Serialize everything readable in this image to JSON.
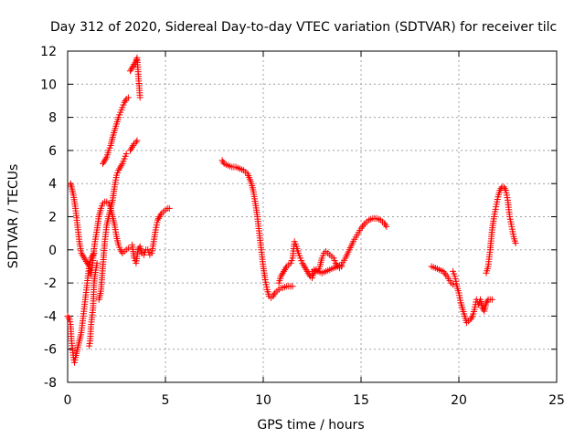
{
  "chart_data": {
    "type": "scatter",
    "title": "Day 312 of 2020, Sidereal Day-to-day VTEC variation (SDTVAR) for receiver tilc",
    "xlabel": "GPS time / hours",
    "ylabel": "SDTVAR / TECUs",
    "xlim": [
      0,
      25
    ],
    "ylim": [
      -8,
      12
    ],
    "xticks": [
      0,
      5,
      10,
      15,
      20,
      25
    ],
    "yticks": [
      -8,
      -6,
      -4,
      -2,
      0,
      2,
      4,
      6,
      8,
      10,
      12
    ],
    "grid": true,
    "legend": "none",
    "marker": "plus",
    "color": "#ff0000",
    "series": [
      {
        "x": [
          0.0,
          0.1,
          0.15,
          0.2,
          0.3,
          0.35,
          0.4,
          0.5,
          0.6,
          0.7,
          0.8,
          0.9,
          1.0,
          1.1,
          1.2,
          1.3,
          1.35
        ],
        "y": [
          -4.0,
          -4.2,
          -4.5,
          -5.5,
          -6.5,
          -6.8,
          -6.5,
          -6.0,
          -5.5,
          -5.0,
          -4.0,
          -3.0,
          -2.0,
          -1.0,
          -0.5,
          -0.3,
          -0.2
        ]
      },
      {
        "x": [
          0.15,
          0.2,
          0.3,
          0.4,
          0.5,
          0.6,
          0.7,
          0.8,
          0.9,
          1.0,
          1.1,
          1.2,
          1.3,
          1.4,
          1.5,
          1.6,
          1.7,
          1.8,
          1.9,
          2.0,
          2.1,
          2.2,
          2.3,
          2.4,
          2.5,
          2.6,
          2.7,
          2.8,
          2.9,
          3.0,
          3.1
        ],
        "y": [
          4.0,
          3.8,
          3.3,
          2.5,
          1.5,
          0.5,
          -0.2,
          -0.4,
          -0.6,
          -0.8,
          -1.0,
          -1.5,
          -0.5,
          0.5,
          1.2,
          2.0,
          2.5,
          2.8,
          2.9,
          2.9,
          2.8,
          2.5,
          2.0,
          1.5,
          0.8,
          0.3,
          0.0,
          -0.2,
          -0.1,
          0.0,
          0.1
        ]
      },
      {
        "x": [
          1.1,
          1.15,
          1.2,
          1.3,
          1.35,
          1.4,
          1.5
        ],
        "y": [
          -5.8,
          -5.5,
          -4.5,
          -3.5,
          -2.0,
          -1.5,
          -0.8
        ]
      },
      {
        "x": [
          1.6,
          1.7,
          1.8,
          1.9,
          2.0,
          2.1,
          2.2,
          2.3,
          2.4,
          2.5,
          2.6,
          2.7,
          2.8,
          2.9,
          3.0
        ],
        "y": [
          -3.0,
          -2.5,
          -1.0,
          0.5,
          1.5,
          2.0,
          2.5,
          3.0,
          3.8,
          4.5,
          4.8,
          5.0,
          5.2,
          5.5,
          5.8
        ]
      },
      {
        "x": [
          1.8,
          1.9,
          2.0,
          2.1,
          2.2,
          2.3,
          2.4,
          2.5,
          2.6,
          2.7,
          2.8,
          2.9,
          3.0,
          3.1
        ],
        "y": [
          5.2,
          5.4,
          5.6,
          6.0,
          6.3,
          6.8,
          7.2,
          7.6,
          8.0,
          8.3,
          8.6,
          8.9,
          9.1,
          9.2
        ]
      },
      {
        "x": [
          3.2,
          3.3,
          3.4,
          3.5,
          3.55
        ],
        "y": [
          6.0,
          6.2,
          6.4,
          6.5,
          6.6
        ]
      },
      {
        "x": [
          3.2,
          3.3,
          3.4,
          3.5,
          3.55,
          3.7
        ],
        "y": [
          10.8,
          11.0,
          11.2,
          11.4,
          11.6,
          9.2
        ]
      },
      {
        "x": [
          3.3,
          3.4,
          3.5,
          3.6,
          3.7,
          3.8,
          3.9,
          4.0,
          4.1,
          4.2,
          4.3,
          4.4,
          4.5,
          4.6,
          4.7,
          4.8,
          4.9,
          5.0,
          5.1,
          5.2
        ],
        "y": [
          0.3,
          -0.5,
          -0.8,
          0.0,
          0.2,
          -0.2,
          -0.3,
          0.0,
          0.0,
          -0.3,
          -0.2,
          0.5,
          1.2,
          1.8,
          2.0,
          2.2,
          2.3,
          2.4,
          2.5,
          2.5
        ]
      },
      {
        "x": [
          7.9,
          8.0,
          8.2,
          8.4,
          8.6,
          8.8,
          9.0,
          9.2,
          9.4,
          9.5,
          9.6,
          9.7,
          9.8,
          9.9,
          10.0,
          10.1,
          10.2,
          10.3,
          10.4,
          10.5,
          10.6,
          10.7,
          10.8,
          10.9,
          11.0,
          11.2,
          11.4,
          11.5
        ],
        "y": [
          5.4,
          5.2,
          5.1,
          5.0,
          5.0,
          4.9,
          4.8,
          4.6,
          4.0,
          3.5,
          2.8,
          2.0,
          1.0,
          0.0,
          -1.0,
          -1.8,
          -2.4,
          -2.8,
          -2.9,
          -2.8,
          -2.6,
          -2.5,
          -2.4,
          -2.3,
          -2.3,
          -2.2,
          -2.2,
          -2.2
        ]
      },
      {
        "x": [
          10.8,
          10.9,
          11.0,
          11.1,
          11.2,
          11.3,
          11.4,
          11.5,
          11.6,
          11.7,
          11.8,
          11.9,
          12.0,
          12.1,
          12.2,
          12.3,
          12.4,
          12.5,
          12.6,
          12.7,
          12.8,
          12.9,
          13.0,
          13.1,
          13.2,
          13.3,
          13.4,
          13.5,
          13.6,
          13.7,
          13.8,
          13.9,
          14.0
        ],
        "y": [
          -2.0,
          -1.6,
          -1.4,
          -1.2,
          -1.0,
          -0.9,
          -0.8,
          -0.5,
          0.5,
          0.2,
          -0.2,
          -0.5,
          -0.8,
          -1.0,
          -1.2,
          -1.4,
          -1.6,
          -1.7,
          -1.4,
          -1.2,
          -1.3,
          -1.0,
          -0.5,
          -0.2,
          -0.1,
          -0.2,
          -0.3,
          -0.4,
          -0.5,
          -0.8,
          -1.0,
          -1.1,
          -1.0
        ]
      },
      {
        "x": [
          12.5,
          12.6,
          12.8,
          13.0,
          13.2,
          13.4,
          13.6,
          13.8,
          14.0,
          14.2,
          14.4,
          14.6,
          14.8,
          15.0,
          15.2,
          15.4,
          15.6,
          15.8,
          16.0,
          16.2,
          16.3
        ],
        "y": [
          -1.3,
          -1.2,
          -1.3,
          -1.4,
          -1.3,
          -1.2,
          -1.1,
          -1.0,
          -0.9,
          -0.5,
          0.0,
          0.5,
          0.9,
          1.3,
          1.6,
          1.8,
          1.9,
          1.9,
          1.8,
          1.6,
          1.4
        ]
      },
      {
        "x": [
          18.6,
          18.8,
          19.0,
          19.2,
          19.4,
          19.6,
          19.7
        ],
        "y": [
          -1.0,
          -1.1,
          -1.2,
          -1.3,
          -1.6,
          -2.0,
          -2.1
        ]
      },
      {
        "x": [
          19.7,
          19.8,
          19.9,
          20.0,
          20.1,
          20.2,
          20.3,
          20.4,
          20.5,
          20.6,
          20.7,
          20.8,
          20.9,
          21.0,
          21.1,
          21.2,
          21.3,
          21.4,
          21.5,
          21.6,
          21.7
        ],
        "y": [
          -1.3,
          -1.6,
          -2.2,
          -2.6,
          -3.2,
          -3.6,
          -4.0,
          -4.4,
          -4.3,
          -4.2,
          -4.0,
          -3.6,
          -3.0,
          -3.3,
          -3.0,
          -3.5,
          -3.7,
          -3.2,
          -3.0,
          -3.0,
          -3.0
        ]
      },
      {
        "x": [
          21.4,
          21.5,
          21.6,
          21.7,
          21.8,
          21.9,
          22.0,
          22.1,
          22.2,
          22.3,
          22.4,
          22.5,
          22.6,
          22.7,
          22.8,
          22.9
        ],
        "y": [
          -1.4,
          -1.0,
          0.0,
          1.2,
          2.0,
          2.6,
          3.2,
          3.6,
          3.8,
          3.8,
          3.6,
          3.0,
          2.0,
          1.4,
          0.8,
          0.4
        ]
      }
    ]
  }
}
